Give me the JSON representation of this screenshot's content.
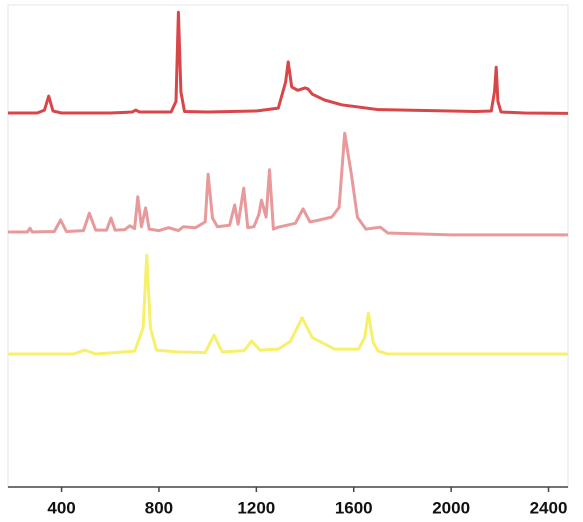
{
  "chart_data": {
    "type": "line",
    "xlim": [
      180,
      2480
    ],
    "ylim": [
      0,
      100
    ],
    "xticks": [
      400,
      800,
      1200,
      1600,
      2000,
      2400
    ],
    "series": [
      {
        "color": "#d9464a",
        "x": [
          180,
          300,
          330,
          347,
          365,
          400,
          600,
          690,
          705,
          720,
          850,
          870,
          880,
          890,
          905,
          1000,
          1200,
          1290,
          1320,
          1331,
          1345,
          1370,
          1400,
          1412,
          1430,
          1480,
          1550,
          1700,
          2100,
          2165,
          2178,
          2185,
          2192,
          2205,
          2300,
          2480
        ],
        "values": [
          77.6,
          77.6,
          78.2,
          81.1,
          78,
          77.6,
          77.6,
          77.8,
          78.2,
          77.8,
          77.8,
          80,
          98.5,
          82,
          77.9,
          77.8,
          78,
          78.6,
          84,
          88.2,
          83,
          82.3,
          82.8,
          82.6,
          81.5,
          80.3,
          79.3,
          78.3,
          77.9,
          78,
          82,
          87.1,
          80,
          77.8,
          77.6,
          77.5
        ]
      },
      {
        "color": "#e8999b",
        "x": [
          180,
          260,
          270,
          280,
          370,
          396,
          420,
          490,
          514,
          540,
          585,
          603,
          620,
          660,
          680,
          700,
          713,
          728,
          745,
          760,
          800,
          840,
          880,
          900,
          950,
          990,
          1002,
          1020,
          1040,
          1090,
          1111,
          1125,
          1148,
          1165,
          1190,
          1210,
          1221,
          1240,
          1254,
          1270,
          1290,
          1360,
          1392,
          1420,
          1450,
          1510,
          1540,
          1563,
          1591,
          1615,
          1650,
          1709,
          1740,
          2000,
          2480
        ],
        "values": [
          52.9,
          52.9,
          53.7,
          52.9,
          53,
          55.4,
          53,
          53.2,
          56.8,
          53.3,
          53.3,
          55.8,
          53.3,
          53.4,
          54.2,
          53.6,
          60.2,
          54,
          57.9,
          53.5,
          53.2,
          53.8,
          53.2,
          54,
          53.8,
          55,
          64.9,
          55.8,
          54,
          54.3,
          58.5,
          54.5,
          62,
          53.8,
          54,
          56.5,
          59.5,
          56,
          65.8,
          53.5,
          53.9,
          54.7,
          57.7,
          55,
          55.3,
          56,
          58,
          73.4,
          64.7,
          56,
          53.5,
          53.9,
          52.7,
          52.3,
          52.3
        ]
      },
      {
        "color": "#f7f06a",
        "x": [
          180,
          450,
          494,
          540,
          700,
          735,
          750,
          765,
          790,
          880,
          990,
          1026,
          1060,
          1150,
          1180,
          1215,
          1290,
          1340,
          1388,
          1430,
          1520,
          1620,
          1645,
          1660,
          1680,
          1700,
          1740,
          2000,
          2480
        ],
        "values": [
          27.6,
          27.6,
          28.4,
          27.6,
          28.2,
          33,
          48.1,
          33,
          28.4,
          28,
          27.9,
          31.5,
          28,
          28.3,
          30.3,
          28.4,
          28.6,
          30.2,
          35.1,
          31,
          28.6,
          28.6,
          31,
          36.1,
          30,
          28.2,
          27.6,
          27.6,
          27.6
        ]
      }
    ]
  }
}
